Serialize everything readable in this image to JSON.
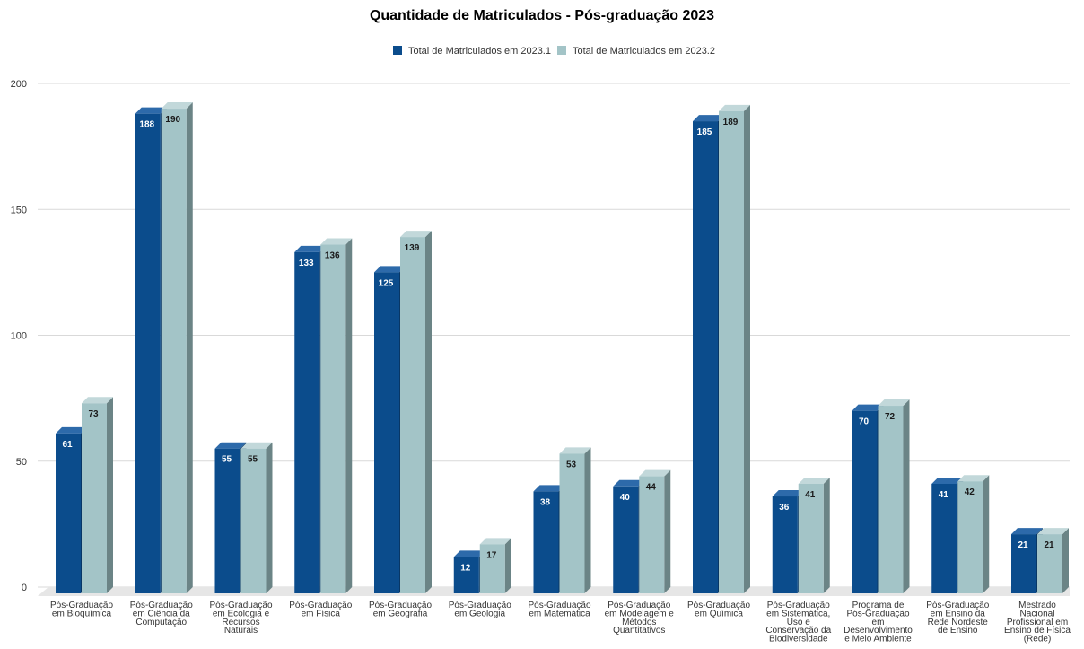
{
  "chart_data": {
    "type": "bar",
    "title": "Quantidade de Matriculados - Pós-graduação 2023",
    "xlabel": "",
    "ylabel": "",
    "ylim": [
      0,
      200
    ],
    "yticks": [
      0,
      50,
      100,
      150,
      200
    ],
    "grid": true,
    "legend_position": "top-center",
    "categories": [
      [
        "Pós-Graduação",
        "em Bioquímica"
      ],
      [
        "Pós-Graduação",
        "em Ciência da",
        "Computação"
      ],
      [
        "Pós-Graduação",
        "em Ecologia e",
        "Recursos",
        "Naturais"
      ],
      [
        "Pós-Graduação",
        "em Física"
      ],
      [
        "Pós-Graduação",
        "em Geografia"
      ],
      [
        "Pós-Graduação",
        "em Geologia"
      ],
      [
        "Pós-Graduação",
        "em Matemática"
      ],
      [
        "Pós-Graduação",
        "em Modelagem e",
        "Métodos",
        "Quantitativos"
      ],
      [
        "Pós-Graduação",
        "em Química"
      ],
      [
        "Pós-Graduação",
        "em Sistemática,",
        "Uso e",
        "Conservação da",
        "Biodiversidade"
      ],
      [
        "Programa de",
        "Pós-Graduação",
        "em",
        "Desenvolvimento",
        "e Meio Ambiente"
      ],
      [
        "Pós-Graduação",
        "em Ensino da",
        "Rede Nordeste",
        "de Ensino"
      ],
      [
        "Mestrado",
        "Nacional",
        "Profissional em",
        "Ensino de Física",
        "(Rede)"
      ]
    ],
    "series": [
      {
        "name": "Total de Matriculados em 2023.1",
        "color": "#0b4c8c",
        "top_color": "#2d6aaa",
        "side_color": "#083766",
        "label_color": "#ffffff",
        "values": [
          61,
          188,
          55,
          133,
          125,
          12,
          38,
          40,
          185,
          36,
          70,
          41,
          21
        ]
      },
      {
        "name": "Total de Matriculados em 2023.2",
        "color": "#a3c4c7",
        "top_color": "#c2d8da",
        "side_color": "#6b8486",
        "label_color": "#1a1a1a",
        "values": [
          73,
          190,
          55,
          136,
          139,
          17,
          53,
          44,
          189,
          41,
          72,
          42,
          21
        ]
      }
    ]
  }
}
